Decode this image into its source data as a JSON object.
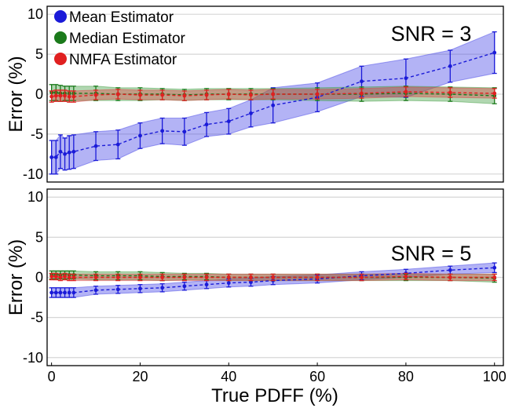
{
  "colors": {
    "mean": "#1a1ad8",
    "median": "#1b7a1b",
    "nmfa": "#e02020",
    "mean_fill": "#4a4ae8",
    "median_fill": "#46a046",
    "nmfa_fill": "#d84848"
  },
  "chart_data": [
    {
      "type": "line",
      "panel": "top",
      "annotation": "SNR = 3",
      "xlabel": "",
      "ylabel": "Error (%)",
      "xlim": [
        -1,
        102
      ],
      "ylim": [
        -11,
        11
      ],
      "yticks": [
        -10,
        -5,
        0,
        5,
        10
      ],
      "ytick_labels": [
        "-10",
        "-5",
        "0",
        "5",
        "10"
      ],
      "grid": true,
      "legend": "top-left",
      "x": [
        0,
        1,
        2,
        3,
        4,
        5,
        10,
        15,
        20,
        25,
        30,
        35,
        40,
        45,
        50,
        60,
        70,
        80,
        90,
        100
      ],
      "series": [
        {
          "name": "Mean Estimator",
          "color_key": "mean",
          "values": [
            -7.9,
            -7.9,
            -7.2,
            -7.5,
            -7.3,
            -7.2,
            -6.5,
            -6.3,
            -5.2,
            -4.6,
            -4.7,
            -3.8,
            -3.4,
            -2.4,
            -1.4,
            -0.4,
            1.6,
            2.0,
            3.5,
            5.2
          ],
          "errors": [
            2.1,
            2.1,
            2.1,
            2.0,
            2.1,
            2.1,
            1.8,
            1.8,
            1.6,
            1.6,
            1.7,
            1.5,
            1.6,
            1.7,
            2.2,
            1.8,
            1.9,
            2.4,
            2.0,
            2.6
          ]
        },
        {
          "name": "Median Estimator",
          "color_key": "median",
          "values": [
            0.2,
            0.2,
            0.1,
            0.1,
            0.1,
            0.1,
            0.1,
            0.0,
            0.0,
            0.0,
            -0.1,
            0.0,
            0.0,
            0.0,
            0.0,
            0.0,
            0.0,
            0.1,
            0.0,
            -0.2
          ],
          "errors": [
            1.0,
            1.0,
            1.0,
            0.9,
            0.9,
            0.9,
            0.9,
            0.8,
            0.8,
            0.7,
            0.7,
            0.7,
            0.7,
            0.7,
            0.7,
            0.8,
            0.9,
            0.9,
            0.9,
            1.0
          ]
        },
        {
          "name": "NMFA Estimator",
          "color_key": "nmfa",
          "values": [
            -0.3,
            -0.2,
            -0.2,
            -0.2,
            -0.3,
            -0.3,
            -0.1,
            0.0,
            -0.1,
            -0.1,
            -0.2,
            -0.1,
            0.0,
            -0.1,
            0.0,
            0.0,
            0.1,
            0.3,
            0.2,
            0.1
          ],
          "errors": [
            0.7,
            0.7,
            0.7,
            0.7,
            0.7,
            0.7,
            0.6,
            0.6,
            0.6,
            0.6,
            0.6,
            0.6,
            0.6,
            0.6,
            0.6,
            0.6,
            0.6,
            0.6,
            0.6,
            0.6
          ]
        }
      ]
    },
    {
      "type": "line",
      "panel": "bottom",
      "annotation": "SNR = 5",
      "xlabel": "True PDFF (%)",
      "ylabel": "Error (%)",
      "xlim": [
        -1,
        102
      ],
      "ylim": [
        -11,
        11
      ],
      "xticks": [
        0,
        20,
        40,
        60,
        80,
        100
      ],
      "xtick_labels": [
        "0",
        "20",
        "40",
        "60",
        "80",
        "100"
      ],
      "yticks": [
        -10,
        -5,
        0,
        5,
        10
      ],
      "ytick_labels": [
        "-10",
        "-5",
        "0",
        "5",
        "10"
      ],
      "grid": true,
      "x": [
        0,
        1,
        2,
        3,
        4,
        5,
        10,
        15,
        20,
        25,
        30,
        35,
        40,
        45,
        50,
        60,
        70,
        80,
        90,
        100
      ],
      "series": [
        {
          "name": "Mean Estimator",
          "color_key": "mean",
          "values": [
            -1.9,
            -1.9,
            -1.9,
            -1.9,
            -1.9,
            -1.9,
            -1.6,
            -1.5,
            -1.4,
            -1.3,
            -1.1,
            -0.9,
            -0.7,
            -0.6,
            -0.4,
            -0.2,
            0.2,
            0.5,
            0.9,
            1.2
          ],
          "errors": [
            0.6,
            0.6,
            0.6,
            0.6,
            0.6,
            0.6,
            0.5,
            0.5,
            0.5,
            0.5,
            0.5,
            0.5,
            0.5,
            0.5,
            0.5,
            0.5,
            0.5,
            0.5,
            0.5,
            0.6
          ]
        },
        {
          "name": "Median Estimator",
          "color_key": "median",
          "values": [
            0.3,
            0.3,
            0.3,
            0.3,
            0.3,
            0.3,
            0.2,
            0.2,
            0.2,
            0.1,
            0.1,
            0.1,
            0.0,
            0.0,
            0.0,
            0.0,
            0.0,
            0.0,
            0.0,
            -0.1
          ],
          "errors": [
            0.5,
            0.5,
            0.5,
            0.5,
            0.5,
            0.5,
            0.5,
            0.5,
            0.5,
            0.5,
            0.4,
            0.4,
            0.4,
            0.4,
            0.4,
            0.4,
            0.4,
            0.4,
            0.4,
            0.5
          ]
        },
        {
          "name": "NMFA Estimator",
          "color_key": "nmfa",
          "values": [
            0.1,
            0.1,
            0.0,
            0.1,
            0.0,
            0.0,
            0.0,
            0.0,
            0.0,
            0.0,
            0.0,
            0.0,
            0.0,
            0.0,
            0.0,
            0.0,
            0.0,
            0.1,
            0.0,
            0.0
          ],
          "errors": [
            0.4,
            0.4,
            0.4,
            0.4,
            0.4,
            0.4,
            0.4,
            0.4,
            0.4,
            0.4,
            0.4,
            0.4,
            0.4,
            0.4,
            0.4,
            0.4,
            0.4,
            0.4,
            0.4,
            0.4
          ]
        }
      ]
    }
  ]
}
